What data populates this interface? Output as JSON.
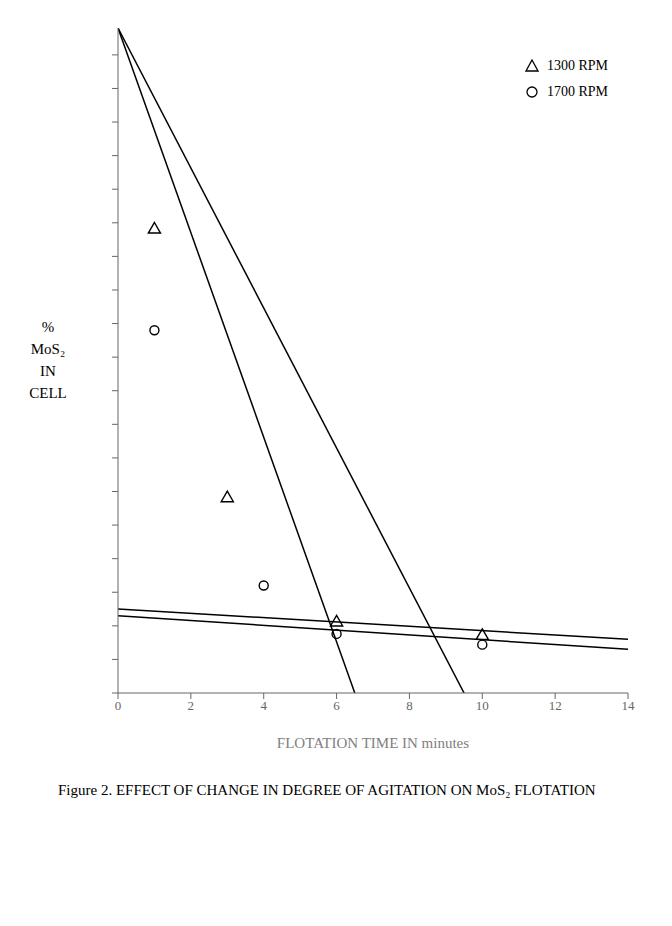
{
  "chart_data": {
    "type": "scatter",
    "title": "Figure 2. EFFECT OF CHANGE IN DEGREE OF AGITATION ON MoS₂ FLOTATION",
    "xlabel": "FLOTATION TIME IN minutes",
    "ylabel": "% MoS₂ IN CELL",
    "xlim": [
      0,
      14
    ],
    "ylim": [
      1,
      100
    ],
    "xticks": [
      0,
      2,
      4,
      6,
      8,
      10,
      12,
      14
    ],
    "yticks": [
      1,
      6,
      11,
      16,
      21,
      26,
      31,
      36,
      41,
      46,
      51,
      56,
      61,
      66,
      71,
      76,
      81,
      86,
      91,
      96
    ],
    "tick_labels": "x",
    "legend": "upper right",
    "grid": false,
    "series": [
      {
        "name": "1300 RPM",
        "type": "scatter",
        "marker": "triangle",
        "color": "#000000",
        "x": [
          1,
          3,
          6,
          10
        ],
        "values": [
          70,
          30,
          11.5,
          9.5
        ]
      },
      {
        "name": "1700 RPM",
        "type": "scatter",
        "marker": "circle",
        "color": "#000000",
        "x": [
          1,
          4,
          6,
          10
        ],
        "values": [
          55,
          17,
          9.8,
          8.2
        ]
      },
      {
        "type": "line",
        "color": "#000000",
        "x": [
          0,
          6.5
        ],
        "values": [
          100,
          1
        ]
      },
      {
        "type": "line",
        "color": "#000000",
        "x": [
          0,
          9.5
        ],
        "values": [
          100,
          1
        ]
      },
      {
        "type": "line",
        "color": "#000000",
        "x": [
          0,
          14
        ],
        "values": [
          13.5,
          9.0
        ]
      },
      {
        "type": "line",
        "color": "#000000",
        "x": [
          0,
          14
        ],
        "values": [
          12.5,
          7.5
        ]
      }
    ]
  }
}
